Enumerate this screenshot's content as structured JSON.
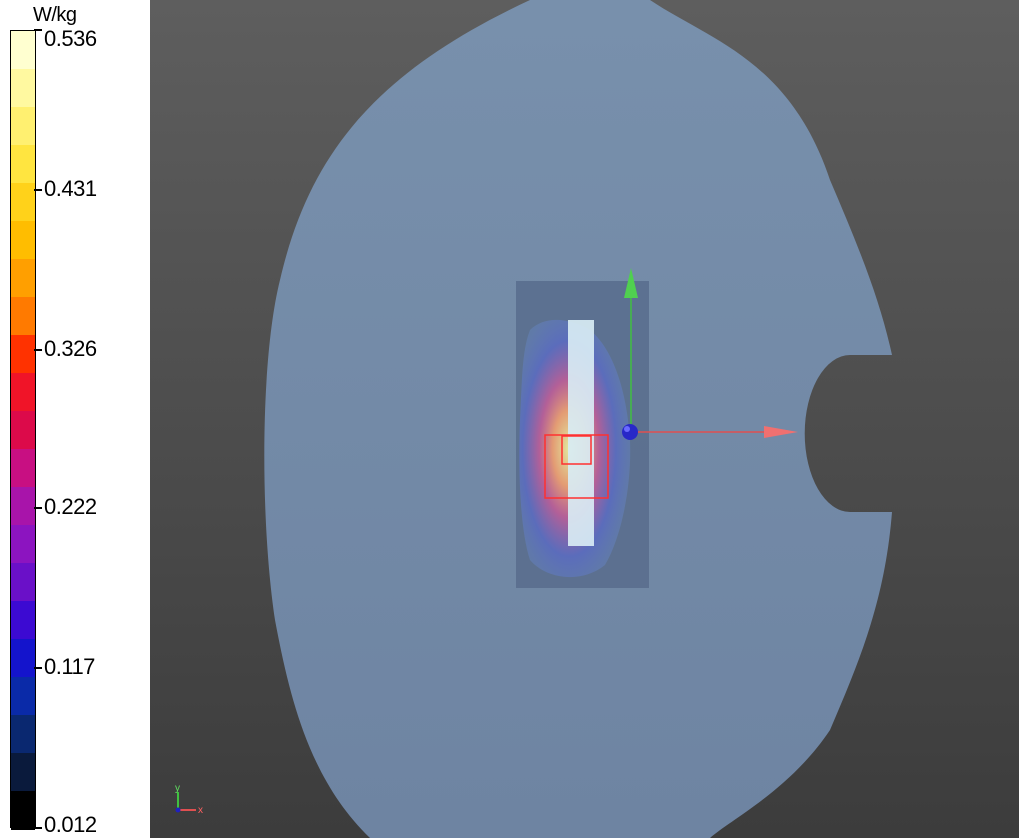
{
  "legend": {
    "unit": "W/kg",
    "ticks": [
      {
        "value": 0.536,
        "label": "0.536"
      },
      {
        "value": 0.431,
        "label": "0.431"
      },
      {
        "value": 0.326,
        "label": "0.326"
      },
      {
        "value": 0.222,
        "label": "0.222"
      },
      {
        "value": 0.117,
        "label": "0.117"
      },
      {
        "value": 0.012,
        "label": "0.012"
      }
    ],
    "colors_top_to_bottom": [
      "#ffffd0",
      "#fff9a0",
      "#fff070",
      "#ffe540",
      "#ffd21a",
      "#ffbd00",
      "#ff9f00",
      "#ff7a00",
      "#ff3200",
      "#f01428",
      "#dc0a4a",
      "#c80f82",
      "#a814aa",
      "#8c14c0",
      "#6a10c8",
      "#3c0ad2",
      "#1414cc",
      "#0a2aa8",
      "#0a2870",
      "#0a1a3c",
      "#000000"
    ]
  },
  "viewport": {
    "background": "#4a4a4a",
    "phantom_color": "#7488a6",
    "axes": {
      "x_color": "#e05050",
      "y_color": "#40c040",
      "z_color": "#2020c0"
    },
    "orientation_labels": {
      "y": "y",
      "x": "x"
    }
  }
}
